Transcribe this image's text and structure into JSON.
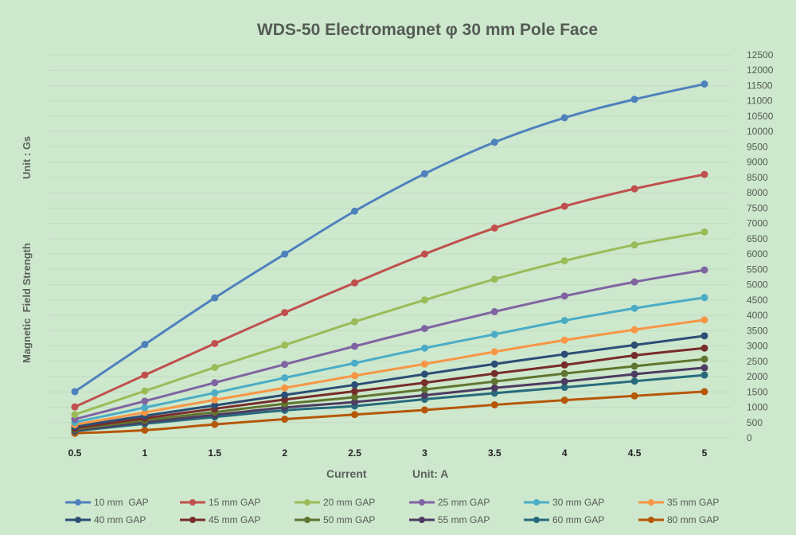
{
  "chart_data": {
    "type": "line",
    "title": "WDS-50 Electromagnet φ 30 mm Pole Face",
    "xlabel": "Current",
    "xunit": "Unit: A",
    "ylabel": "Magnetic  Field Strength",
    "yunit": "Unit : Gs",
    "x": [
      0.5,
      1,
      1.5,
      2,
      2.5,
      3,
      3.5,
      4,
      4.5,
      5
    ],
    "x_tick_labels": [
      "0.5",
      "1",
      "1.5",
      "2",
      "2.5",
      "3",
      "3.5",
      "4",
      "4.5",
      "5"
    ],
    "ylim": [
      0,
      12500
    ],
    "y_ticks": [
      0,
      500,
      1000,
      1500,
      2000,
      2500,
      3000,
      3500,
      4000,
      4500,
      5000,
      5500,
      6000,
      6500,
      7000,
      7500,
      8000,
      8500,
      9000,
      9500,
      10000,
      10500,
      11000,
      11500,
      12000,
      12500
    ],
    "y_tick_labels": [
      "0",
      "500",
      "1000",
      "1500",
      "2000",
      "2500",
      "3000",
      "3500",
      "4000",
      "4500",
      "5000",
      "5500",
      "6000",
      "6500",
      "7000",
      "7500",
      "8000",
      "8500",
      "9000",
      "9500",
      "10000",
      "10500",
      "11000",
      "11500",
      "12000",
      "12500"
    ],
    "y_axis_position": "right",
    "grid": true,
    "legend_position": "bottom",
    "series": [
      {
        "name": "10 mm  GAP",
        "color": "#4f81bd",
        "values": [
          1510,
          3050,
          4570,
          6000,
          7400,
          8620,
          9650,
          10450,
          11050,
          11550
        ]
      },
      {
        "name": "15 mm GAP",
        "color": "#c0504d",
        "values": [
          1010,
          2050,
          3080,
          4090,
          5060,
          6000,
          6850,
          7560,
          8130,
          8600
        ]
      },
      {
        "name": "20 mm GAP",
        "color": "#9bbb59",
        "values": [
          760,
          1530,
          2300,
          3030,
          3790,
          4500,
          5180,
          5780,
          6300,
          6720
        ]
      },
      {
        "name": "25 mm GAP",
        "color": "#8064a2",
        "values": [
          610,
          1200,
          1800,
          2400,
          2990,
          3570,
          4120,
          4630,
          5090,
          5480
        ]
      },
      {
        "name": "30 mm GAP",
        "color": "#4bacc6",
        "values": [
          510,
          990,
          1470,
          1960,
          2440,
          2930,
          3380,
          3830,
          4230,
          4580
        ]
      },
      {
        "name": "35 mm GAP",
        "color": "#f79646",
        "values": [
          430,
          830,
          1240,
          1630,
          2030,
          2410,
          2810,
          3190,
          3530,
          3850
        ]
      },
      {
        "name": "40 mm GAP",
        "color": "#2c4d75",
        "values": [
          370,
          720,
          1060,
          1400,
          1730,
          2080,
          2410,
          2730,
          3030,
          3330
        ]
      },
      {
        "name": "45 mm GAP",
        "color": "#772c2a",
        "values": [
          320,
          640,
          950,
          1250,
          1520,
          1800,
          2100,
          2380,
          2690,
          2930
        ]
      },
      {
        "name": "50 mm GAP",
        "color": "#5f7530",
        "values": [
          280,
          570,
          840,
          1110,
          1330,
          1580,
          1840,
          2100,
          2340,
          2570
        ]
      },
      {
        "name": "55 mm GAP",
        "color": "#4d3b62",
        "values": [
          250,
          510,
          750,
          990,
          1170,
          1390,
          1630,
          1840,
          2080,
          2290
        ]
      },
      {
        "name": "60 mm GAP",
        "color": "#276a7c",
        "values": [
          220,
          460,
          680,
          900,
          1040,
          1260,
          1460,
          1650,
          1850,
          2050
        ]
      },
      {
        "name": "80 mm GAP",
        "color": "#b65708",
        "values": [
          150,
          250,
          440,
          610,
          760,
          910,
          1080,
          1230,
          1370,
          1510
        ]
      }
    ]
  }
}
